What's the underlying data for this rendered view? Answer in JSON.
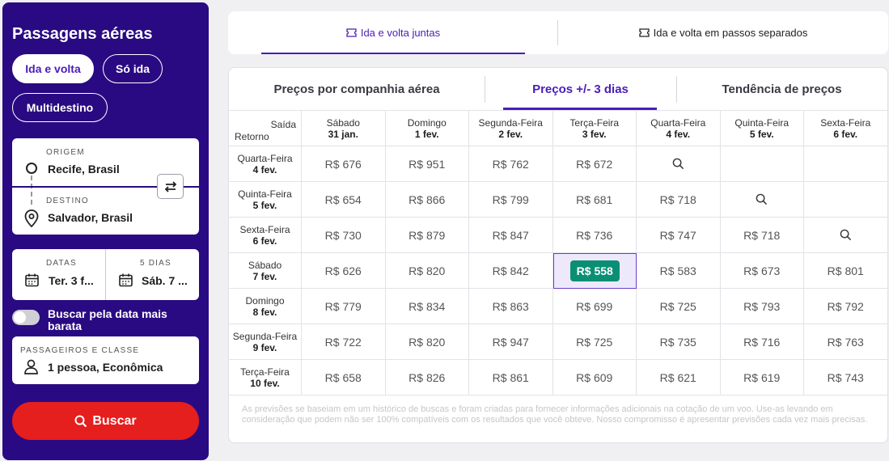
{
  "sidebar": {
    "title": "Passagens aéreas",
    "trip_types": {
      "round": "Ida e volta",
      "oneway": "Só ida",
      "multi": "Multidestino"
    },
    "origin": {
      "label": "ORIGEM",
      "value": "Recife, Brasil"
    },
    "destination": {
      "label": "DESTINO",
      "value": "Salvador, Brasil"
    },
    "dates": {
      "label": "DATAS",
      "value": "Ter. 3 f..."
    },
    "days": {
      "label": "5 DIAS",
      "value": "Sáb. 7 ..."
    },
    "cheapest_toggle": {
      "label": "Buscar pela data mais barata",
      "on": false
    },
    "passengers": {
      "label": "PASSAGEIROS E CLASSE",
      "value": "1 pessoa, Econômica"
    },
    "search_label": "Buscar"
  },
  "top_tabs": [
    "Ida e volta juntas",
    "Ida e volta em passos separados"
  ],
  "sub_tabs": [
    "Preços por companhia aérea",
    "Preços +/- 3 dias",
    "Tendência de preços"
  ],
  "grid": {
    "corner": {
      "departure": "Saída",
      "return": "Retorno"
    },
    "columns": [
      {
        "day": "Sábado",
        "date": "31 jan."
      },
      {
        "day": "Domingo",
        "date": "1 fev."
      },
      {
        "day": "Segunda-Feira",
        "date": "2 fev."
      },
      {
        "day": "Terça-Feira",
        "date": "3 fev."
      },
      {
        "day": "Quarta-Feira",
        "date": "4 fev."
      },
      {
        "day": "Quinta-Feira",
        "date": "5 fev."
      },
      {
        "day": "Sexta-Feira",
        "date": "6 fev."
      }
    ],
    "rows": [
      {
        "day": "Quarta-Feira",
        "date": "4 fev.",
        "cells": [
          "R$ 676",
          "R$ 951",
          "R$ 762",
          "R$ 672",
          "search",
          "",
          ""
        ]
      },
      {
        "day": "Quinta-Feira",
        "date": "5 fev.",
        "cells": [
          "R$ 654",
          "R$ 866",
          "R$ 799",
          "R$ 681",
          "R$ 718",
          "search",
          ""
        ]
      },
      {
        "day": "Sexta-Feira",
        "date": "6 fev.",
        "cells": [
          "R$ 730",
          "R$ 879",
          "R$ 847",
          "R$ 736",
          "R$ 747",
          "R$ 718",
          "search"
        ]
      },
      {
        "day": "Sábado",
        "date": "7 fev.",
        "cells": [
          "R$ 626",
          "R$ 820",
          "R$ 842",
          "R$ 558",
          "R$ 583",
          "R$ 673",
          "R$ 801"
        ]
      },
      {
        "day": "Domingo",
        "date": "8 fev.",
        "cells": [
          "R$ 779",
          "R$ 834",
          "R$ 863",
          "R$ 699",
          "R$ 725",
          "R$ 793",
          "R$ 792"
        ]
      },
      {
        "day": "Segunda-Feira",
        "date": "9 fev.",
        "cells": [
          "R$ 722",
          "R$ 820",
          "R$ 947",
          "R$ 725",
          "R$ 735",
          "R$ 716",
          "R$ 763"
        ]
      },
      {
        "day": "Terça-Feira",
        "date": "10 fev.",
        "cells": [
          "R$ 658",
          "R$ 826",
          "R$ 861",
          "R$ 609",
          "R$ 621",
          "R$ 619",
          "R$ 743"
        ]
      }
    ],
    "best": {
      "row": 3,
      "col": 3
    }
  },
  "disclaimer": "As previsões se baseiam em um histórico de buscas e foram criadas para fornecer informações adicionais na cotação de um voo. Use-as levando em consideração que podem não ser 100% compatíveis com os resultados que você obteve. Nosso compromisso é apresentar previsões cada vez mais precisas.",
  "colors": {
    "brand": "#2a0a82",
    "accent": "#4b1cb8",
    "cta": "#e51e1e",
    "best": "#0a8f74"
  }
}
